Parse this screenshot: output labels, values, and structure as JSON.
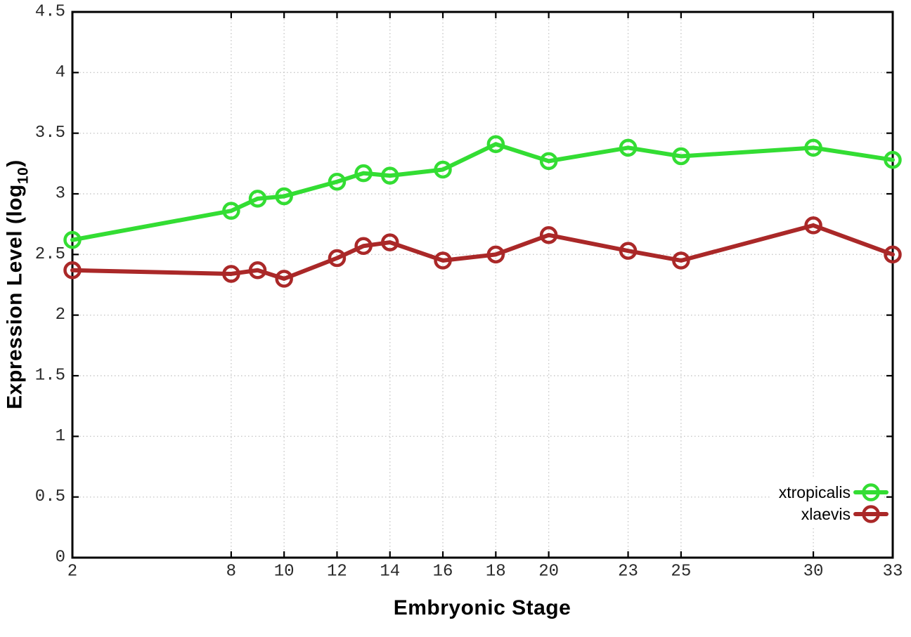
{
  "chart_data": {
    "type": "line",
    "title": "",
    "xlabel": "Embryonic Stage",
    "ylabel": {
      "prefix": "Expression Level (log",
      "sub": "10",
      "suffix": ")"
    },
    "xlim": [
      2,
      33
    ],
    "ylim": [
      0,
      4.5
    ],
    "x_ticks": [
      2,
      8,
      10,
      12,
      14,
      16,
      18,
      20,
      23,
      25,
      30,
      33
    ],
    "y_ticks": [
      0,
      0.5,
      1,
      1.5,
      2,
      2.5,
      3,
      3.5,
      4,
      4.5
    ],
    "grid": "dotted",
    "legend_position": "bottom-right-inside",
    "axis_color": "#000000",
    "grid_color": "#c8c8c8",
    "tick_label_color": "#2a2a2a",
    "x": [
      2,
      8,
      9,
      10,
      12,
      13,
      14,
      16,
      18,
      20,
      23,
      25,
      30,
      33
    ],
    "series": [
      {
        "name": "xtropicalis",
        "color": "#33dd33",
        "marker": "open-circle",
        "values": [
          2.62,
          2.86,
          2.96,
          2.98,
          3.1,
          3.17,
          3.15,
          3.2,
          3.41,
          3.27,
          3.38,
          3.31,
          3.38,
          3.28
        ]
      },
      {
        "name": "xlaevis",
        "color": "#aa2828",
        "marker": "open-circle",
        "values": [
          2.37,
          2.34,
          2.37,
          2.3,
          2.47,
          2.57,
          2.6,
          2.45,
          2.5,
          2.66,
          2.53,
          2.45,
          2.74,
          2.5
        ]
      }
    ]
  }
}
